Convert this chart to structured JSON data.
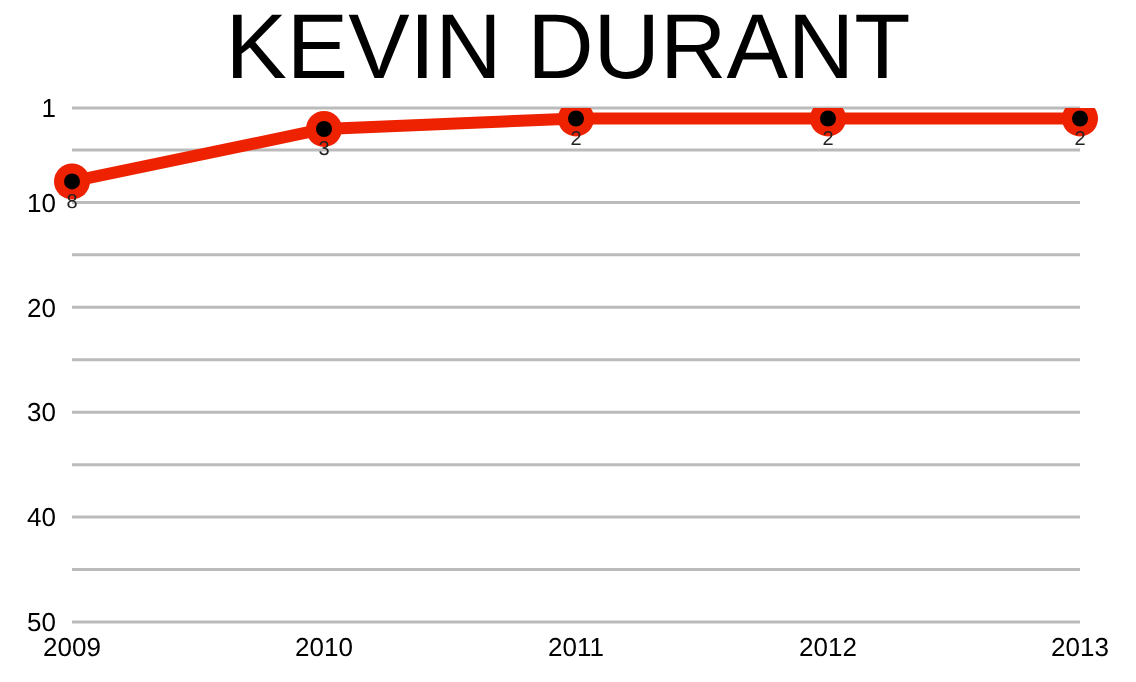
{
  "chart_data": {
    "type": "line",
    "title": "KEVIN DURANT",
    "categories": [
      "2009",
      "2010",
      "2011",
      "2012",
      "2013"
    ],
    "series": [
      {
        "color": "#ee2200",
        "values": [
          8,
          3,
          2,
          2,
          2
        ]
      }
    ],
    "ylim": [
      50,
      1
    ],
    "yticks": [
      1,
      {
        "value": 5,
        "label": null
      },
      10,
      {
        "value": 15,
        "label": null
      },
      20,
      {
        "value": 25,
        "label": null
      },
      30,
      {
        "value": 35,
        "label": null
      },
      40,
      {
        "value": 45,
        "label": null
      },
      50
    ],
    "grid": "y",
    "marker": "circle",
    "line_style": "solid",
    "data_labels": true,
    "legend": false
  }
}
